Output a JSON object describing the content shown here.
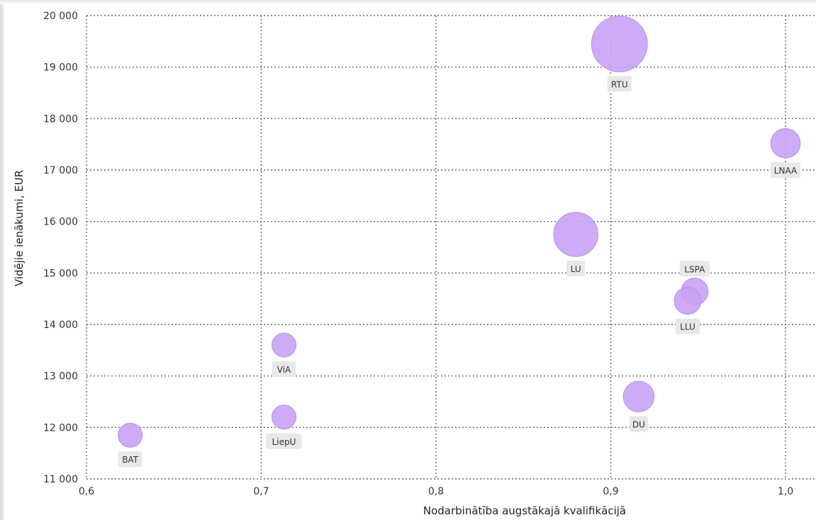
{
  "chart_data": {
    "type": "scatter",
    "variant": "bubble",
    "title": "",
    "xlabel": "Nodarbinātība augstākajā kvalifikācijā",
    "ylabel": "Vidējie ienākumi, EUR",
    "xlim": [
      0.6,
      1.0
    ],
    "ylim": [
      11000,
      20000
    ],
    "x_ticks": [
      0.6,
      0.7,
      0.8,
      0.9,
      1.0
    ],
    "x_tick_labels": [
      "0,6",
      "0,7",
      "0,8",
      "0,9",
      "1,0"
    ],
    "y_ticks": [
      11000,
      12000,
      13000,
      14000,
      15000,
      16000,
      17000,
      18000,
      19000,
      20000
    ],
    "y_tick_labels": [
      "11 000",
      "12 000",
      "13 000",
      "14 000",
      "15 000",
      "16 000",
      "17 000",
      "18 000",
      "19 000",
      "20 000"
    ],
    "grid": true,
    "grid_style": "dotted",
    "legend": "none",
    "colors": {
      "bubble_fill": "#c9a2f5",
      "bubble_stroke": "#b98cf0",
      "label_bg": "#e8e8e8",
      "grid": "#666666"
    },
    "points": [
      {
        "label": "RTU",
        "x": 0.905,
        "y": 19450,
        "size": 4.3,
        "label_position": "below"
      },
      {
        "label": "LNAA",
        "x": 1.0,
        "y": 17520,
        "size": 1.2,
        "label_position": "below"
      },
      {
        "label": "LU",
        "x": 0.88,
        "y": 15750,
        "size": 2.7,
        "label_position": "below"
      },
      {
        "label": "LSPA",
        "x": 0.948,
        "y": 14640,
        "size": 1.0,
        "label_position": "above"
      },
      {
        "label": "LLU",
        "x": 0.944,
        "y": 14460,
        "size": 1.0,
        "label_position": "below"
      },
      {
        "label": "ViA",
        "x": 0.713,
        "y": 13600,
        "size": 0.8,
        "label_position": "below"
      },
      {
        "label": "DU",
        "x": 0.916,
        "y": 12600,
        "size": 1.3,
        "label_position": "below"
      },
      {
        "label": "LiepU",
        "x": 0.713,
        "y": 12200,
        "size": 0.8,
        "label_position": "below"
      },
      {
        "label": "BAT",
        "x": 0.625,
        "y": 11850,
        "size": 0.8,
        "label_position": "below"
      }
    ]
  }
}
